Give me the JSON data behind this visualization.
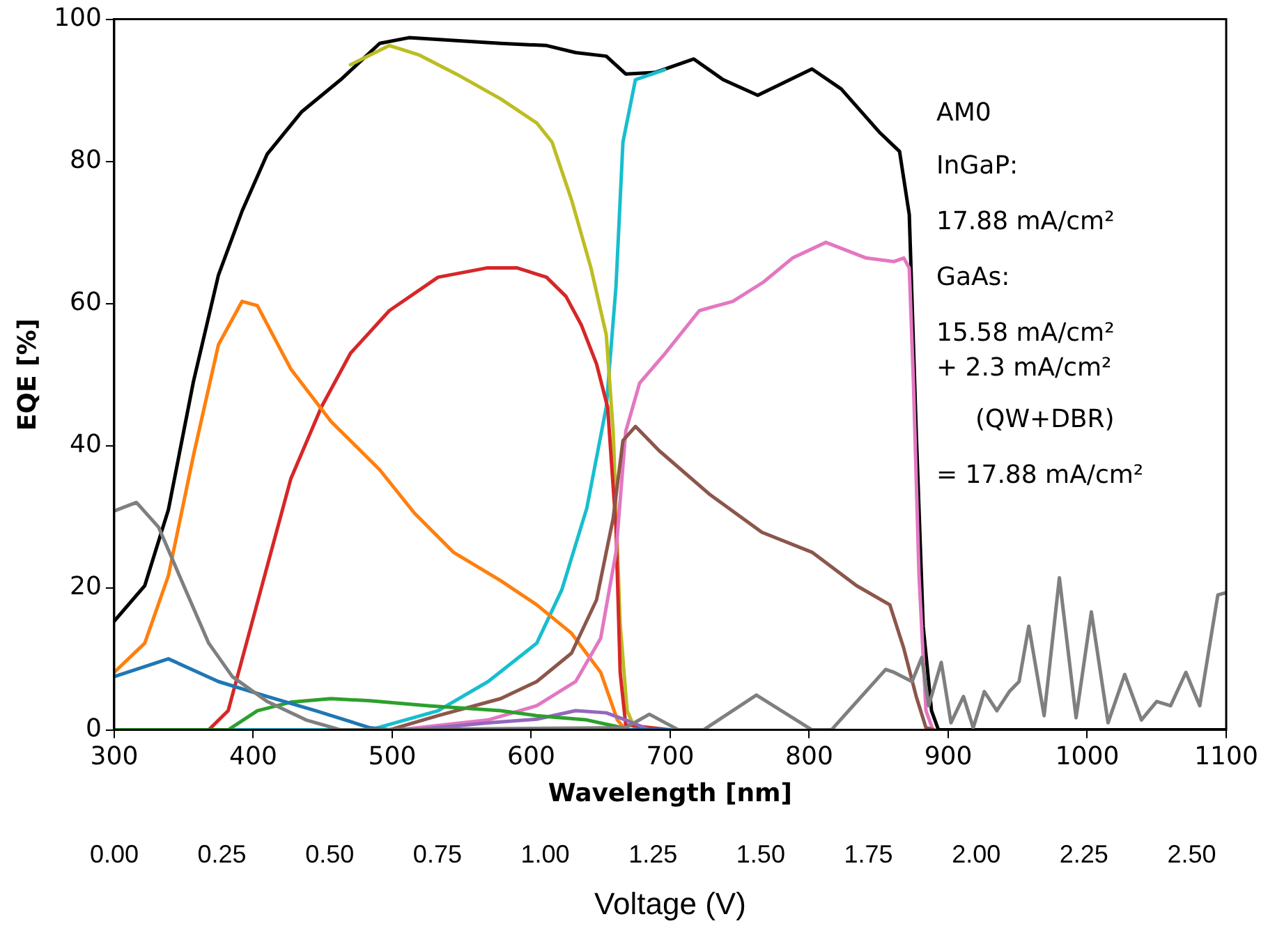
{
  "chart_data": {
    "type": "line",
    "xlabel": "Wavelength [nm]",
    "ylabel": "EQE [%]",
    "x2label": "Voltage (V)",
    "xlim": [
      300,
      1100
    ],
    "xticks": [
      300,
      400,
      500,
      600,
      700,
      800,
      900,
      1000,
      1100
    ],
    "ylim": [
      0,
      100
    ],
    "yticks": [
      0,
      20,
      40,
      60,
      80,
      100
    ],
    "x2lim": [
      0,
      2.58
    ],
    "x2ticks": [
      {
        "value": 0,
        "label": "0.00"
      },
      {
        "value": 0.25,
        "label": "0.25"
      },
      {
        "value": 0.5,
        "label": "0.50"
      },
      {
        "value": 0.75,
        "label": "0.75"
      },
      {
        "value": 1,
        "label": "1.00"
      },
      {
        "value": 1.25,
        "label": "1.25"
      },
      {
        "value": 1.5,
        "label": "1.50"
      },
      {
        "value": 1.75,
        "label": "1.75"
      },
      {
        "value": 2,
        "label": "2.00"
      },
      {
        "value": 2.25,
        "label": "2.25"
      },
      {
        "value": 2.5,
        "label": "2.50"
      }
    ],
    "grid": false,
    "legend": false,
    "marker": "none",
    "line_style": "solid",
    "annotations": [
      "AM0",
      "InGaP:",
      "17.88 mA/cm²",
      "GaAs:",
      "15.58 mA/cm²",
      "+ 2.3 mA/cm²",
      "(QW+DBR)",
      "= 17.88 mA/cm²"
    ],
    "series": [
      {
        "color": "#7f7f7f",
        "x": [
          300,
          316,
          332,
          350,
          368,
          385,
          410,
          438,
          463,
          668,
          685,
          706,
          724,
          762,
          802,
          816,
          855,
          861,
          874,
          881,
          886,
          895,
          902,
          911,
          918,
          926,
          935,
          944,
          951,
          958,
          969,
          980,
          992,
          1003,
          1015,
          1027,
          1039,
          1050,
          1060,
          1071,
          1081,
          1094,
          1100
        ],
        "values": [
          30.8,
          32,
          28.5,
          20.3,
          12.2,
          7.5,
          4,
          1.4,
          0,
          0.3,
          2.2,
          0,
          0,
          4.9,
          0,
          0,
          8.5,
          8.1,
          6.8,
          10.2,
          3.4,
          9.5,
          1,
          4.7,
          0.3,
          5.4,
          2.7,
          5.4,
          6.8,
          14.6,
          2,
          21.4,
          1.7,
          16.6,
          1,
          7.8,
          1.4,
          4,
          3.4,
          8.1,
          3.4,
          19,
          19.3
        ]
      },
      {
        "color": "#1f77b4",
        "x": [
          300,
          339,
          375,
          410,
          445,
          484,
          498,
          700
        ],
        "values": [
          7.5,
          10,
          6.8,
          4.7,
          2.7,
          0.3,
          0,
          0
        ]
      },
      {
        "color": "#2ca02c",
        "x": [
          300,
          382,
          403,
          427,
          456,
          484,
          526,
          578,
          604,
          640,
          661,
          671,
          700
        ],
        "values": [
          0,
          0,
          2.7,
          3.9,
          4.4,
          4.1,
          3.4,
          2.7,
          2,
          1.4,
          0.5,
          0,
          0
        ]
      },
      {
        "color": "#9467bd",
        "x": [
          515,
          569,
          604,
          632,
          654,
          668,
          685,
          700
        ],
        "values": [
          0,
          1,
          1.5,
          2.7,
          2.4,
          1.4,
          0,
          0
        ]
      },
      {
        "color": "#8c564b",
        "x": [
          498,
          533,
          578,
          604,
          629,
          647,
          659,
          666,
          675,
          692,
          728,
          766,
          802,
          834,
          858,
          868,
          877,
          884,
          890
        ],
        "values": [
          0,
          2,
          4.4,
          6.8,
          10.8,
          18.3,
          29.8,
          40.7,
          42.7,
          39.3,
          33.2,
          27.8,
          25,
          20.3,
          17.6,
          11.5,
          4.7,
          0.3,
          0
        ]
      },
      {
        "color": "#e377c2",
        "x": [
          505,
          569,
          604,
          632,
          650,
          661,
          668,
          678,
          696,
          721,
          745,
          767,
          788,
          812,
          841,
          861,
          868,
          872,
          875,
          879,
          884,
          889
        ],
        "values": [
          0,
          1.4,
          3.4,
          6.8,
          12.9,
          25,
          42,
          48.8,
          52.9,
          59,
          60.3,
          63,
          66.4,
          68.6,
          66.4,
          65.9,
          66.4,
          65,
          48.8,
          21.7,
          2.7,
          0
        ]
      },
      {
        "color": "#ff7f0e",
        "x": [
          300,
          322,
          339,
          357,
          375,
          392,
          403,
          427,
          456,
          491,
          516,
          544,
          578,
          604,
          629,
          650,
          662,
          668,
          700
        ],
        "values": [
          8.1,
          12.2,
          21.7,
          38.6,
          54.2,
          60.3,
          59.7,
          50.8,
          43.4,
          36.6,
          30.5,
          25,
          21,
          17.6,
          13.6,
          8.1,
          1.4,
          0,
          0
        ]
      },
      {
        "color": "#d62728",
        "x": [
          300,
          368,
          382,
          399,
          427,
          449,
          470,
          498,
          533,
          568,
          590,
          611,
          625,
          636,
          647,
          655,
          661,
          664,
          668,
          700
        ],
        "values": [
          0,
          0,
          2.7,
          15,
          35.3,
          45.4,
          53,
          59,
          63.7,
          65,
          65,
          63.7,
          61,
          57,
          51.5,
          45.4,
          28.5,
          8.1,
          0.7,
          0
        ]
      },
      {
        "color": "#bcbd22",
        "x": [
          470,
          498,
          519,
          547,
          578,
          604,
          615,
          629,
          643,
          654,
          659,
          664,
          669,
          675,
          700
        ],
        "values": [
          93.6,
          96.3,
          95,
          92.2,
          88.8,
          85.4,
          82.7,
          74.6,
          65,
          55.6,
          42,
          15,
          2.7,
          0,
          0
        ]
      },
      {
        "color": "#17becf",
        "x": [
          300,
          484,
          533,
          569,
          604,
          622,
          640,
          654,
          661,
          666,
          675,
          696
        ],
        "values": [
          0,
          0,
          2.7,
          6.8,
          12.2,
          19.7,
          31.2,
          45.4,
          62.4,
          82.7,
          91.5,
          92.9
        ]
      },
      {
        "color": "#000000",
        "x": [
          300,
          322,
          339,
          357,
          375,
          392,
          410,
          435,
          463,
          491,
          512,
          578,
          611,
          632,
          654,
          668,
          689,
          717,
          738,
          763,
          802,
          823,
          851,
          865,
          872,
          877,
          882,
          888,
          893,
          1100
        ],
        "values": [
          15.3,
          20.3,
          31,
          49,
          64,
          73,
          81,
          87,
          91.5,
          96.6,
          97.4,
          96.6,
          96.3,
          95.3,
          94.8,
          92.3,
          92.5,
          94.4,
          91.5,
          89.3,
          93,
          90.2,
          84,
          81.4,
          72.5,
          42,
          14.6,
          2.7,
          0,
          0
        ]
      }
    ]
  }
}
